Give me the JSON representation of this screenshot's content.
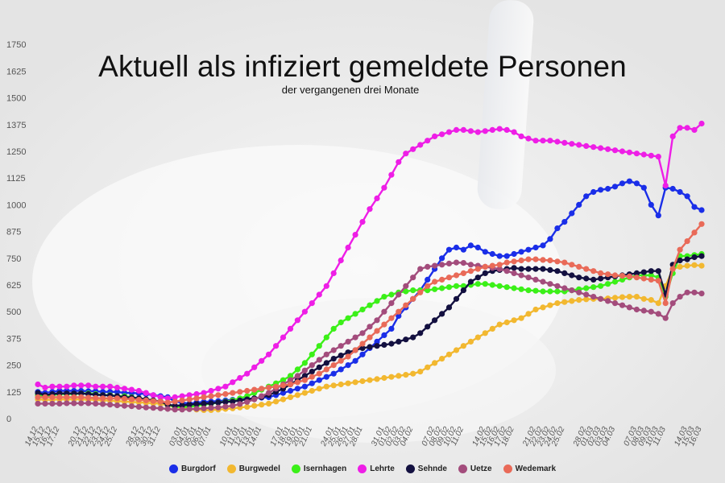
{
  "chart_data": {
    "type": "line",
    "title": "Aktuell als infiziert gemeldete Personen",
    "subtitle": "der vergangenen drei Monate",
    "ylim": [
      0,
      1875
    ],
    "yticks": [
      0,
      125,
      250,
      375,
      500,
      625,
      750,
      875,
      1000,
      1125,
      1250,
      1375,
      1500,
      1625,
      1750
    ],
    "grid": false,
    "legend": "bottom",
    "x": [
      "14.12",
      "15.12",
      "16.12",
      "17.12",
      "18.12",
      "19.12",
      "20.12",
      "21.12",
      "22.12",
      "23.12",
      "24.12",
      "25.12",
      "26.12",
      "27.12",
      "28.12",
      "29.12",
      "30.12",
      "31.12",
      "01.01",
      "02.01",
      "03.01",
      "04.01",
      "05.01",
      "06.01",
      "07.01",
      "08.01",
      "09.01",
      "10.01",
      "11.01",
      "12.01",
      "13.01",
      "14.01",
      "15.01",
      "16.01",
      "17.01",
      "18.01",
      "19.01",
      "20.01",
      "21.01",
      "22.01",
      "23.01",
      "24.01",
      "25.01",
      "26.01",
      "27.01",
      "28.01",
      "29.01",
      "30.01",
      "31.01",
      "01.02",
      "02.02",
      "03.02",
      "04.02",
      "05.02",
      "06.02",
      "07.02",
      "08.02",
      "09.02",
      "10.02",
      "11.02",
      "12.02",
      "13.02",
      "14.02",
      "15.02",
      "16.02",
      "17.02",
      "18.02",
      "19.02",
      "20.02",
      "21.02",
      "22.02",
      "23.02",
      "24.02",
      "25.02",
      "26.02",
      "27.02",
      "28.02",
      "01.03",
      "02.03",
      "03.03",
      "04.03",
      "05.03",
      "06.03",
      "07.03",
      "08.03",
      "09.03",
      "10.03",
      "11.03",
      "12.03",
      "13.03",
      "14.03",
      "15.03",
      "16.03"
    ],
    "xtick_labels": [
      "14.12",
      "15.12",
      "16.12",
      "17.12",
      "20.12",
      "21.12",
      "22.12",
      "23.12",
      "24.12",
      "25.12",
      "28.12",
      "29.12",
      "30.12",
      "31.12",
      "03.01",
      "04.01",
      "05.01",
      "06.01",
      "07.01",
      "10.01",
      "11.01",
      "12.01",
      "13.01",
      "14.01",
      "17.01",
      "18.01",
      "19.01",
      "20.01",
      "21.01",
      "24.01",
      "25.01",
      "26.01",
      "27.01",
      "28.01",
      "31.01",
      "01.02",
      "02.02",
      "03.02",
      "04.02",
      "07.02",
      "08.02",
      "09.02",
      "10.02",
      "11.02",
      "14.02",
      "15.02",
      "16.02",
      "17.02",
      "18.02",
      "21.02",
      "22.02",
      "23.02",
      "24.02",
      "25.02",
      "28.02",
      "01.03",
      "02.03",
      "03.03",
      "04.03",
      "07.03",
      "08.03",
      "09.03",
      "10.03",
      "11.03",
      "14.03",
      "15.03",
      "16.03"
    ],
    "series": [
      {
        "name": "Burgdorf",
        "color": "#1a2ee8",
        "values": [
          125,
          120,
          125,
          130,
          130,
          130,
          130,
          128,
          128,
          125,
          125,
          125,
          120,
          120,
          118,
          115,
          110,
          105,
          100,
          80,
          75,
          70,
          75,
          78,
          80,
          82,
          85,
          88,
          90,
          92,
          95,
          98,
          100,
          110,
          120,
          130,
          140,
          150,
          165,
          180,
          195,
          210,
          230,
          250,
          270,
          300,
          330,
          360,
          390,
          420,
          480,
          520,
          560,
          600,
          650,
          700,
          750,
          790,
          800,
          790,
          810,
          800,
          780,
          770,
          760,
          760,
          770,
          780,
          790,
          800,
          810,
          840,
          890,
          920,
          960,
          1000,
          1040,
          1060,
          1070,
          1075,
          1085,
          1100,
          1110,
          1100,
          1080,
          1000,
          950,
          1080,
          1075,
          1060,
          1040,
          990,
          975
        ]
      },
      {
        "name": "Burgwedel",
        "color": "#f2b830",
        "values": [
          90,
          88,
          88,
          90,
          90,
          90,
          90,
          88,
          88,
          85,
          85,
          82,
          80,
          78,
          76,
          74,
          72,
          70,
          62,
          55,
          50,
          45,
          42,
          40,
          40,
          42,
          45,
          48,
          52,
          55,
          60,
          65,
          70,
          80,
          90,
          100,
          110,
          120,
          130,
          140,
          150,
          155,
          160,
          165,
          170,
          175,
          180,
          185,
          190,
          195,
          200,
          205,
          210,
          220,
          240,
          260,
          280,
          300,
          320,
          340,
          360,
          380,
          400,
          420,
          440,
          450,
          460,
          470,
          490,
          510,
          520,
          530,
          540,
          545,
          550,
          555,
          558,
          560,
          560,
          562,
          565,
          568,
          570,
          570,
          560,
          555,
          540,
          620,
          700,
          710,
          715,
          718,
          715
        ]
      },
      {
        "name": "Isernhagen",
        "color": "#3bf018",
        "values": [
          110,
          105,
          110,
          115,
          115,
          115,
          118,
          118,
          115,
          110,
          110,
          105,
          105,
          100,
          95,
          90,
          85,
          80,
          65,
          55,
          55,
          55,
          60,
          65,
          70,
          75,
          80,
          85,
          95,
          105,
          120,
          135,
          150,
          165,
          180,
          200,
          230,
          260,
          300,
          340,
          380,
          420,
          450,
          470,
          490,
          510,
          530,
          550,
          570,
          580,
          590,
          595,
          600,
          600,
          600,
          605,
          610,
          615,
          620,
          620,
          625,
          630,
          630,
          625,
          620,
          615,
          610,
          605,
          600,
          598,
          595,
          595,
          595,
          595,
          600,
          605,
          610,
          615,
          620,
          630,
          640,
          650,
          660,
          670,
          670,
          670,
          660,
          570,
          680,
          760,
          760,
          765,
          770
        ]
      },
      {
        "name": "Lehrte",
        "color": "#ee1ee6",
        "values": [
          160,
          145,
          150,
          150,
          150,
          155,
          155,
          155,
          150,
          150,
          150,
          145,
          140,
          135,
          130,
          120,
          110,
          100,
          95,
          100,
          105,
          110,
          115,
          120,
          130,
          140,
          150,
          170,
          190,
          210,
          240,
          270,
          300,
          340,
          380,
          420,
          460,
          500,
          540,
          580,
          620,
          680,
          740,
          800,
          860,
          920,
          980,
          1030,
          1080,
          1140,
          1200,
          1240,
          1260,
          1280,
          1300,
          1320,
          1330,
          1340,
          1350,
          1350,
          1345,
          1340,
          1345,
          1350,
          1355,
          1350,
          1340,
          1320,
          1310,
          1300,
          1300,
          1300,
          1295,
          1290,
          1285,
          1280,
          1275,
          1270,
          1265,
          1260,
          1255,
          1250,
          1245,
          1240,
          1235,
          1230,
          1225,
          1090,
          1320,
          1360,
          1360,
          1350,
          1380
        ]
      },
      {
        "name": "Sehnde",
        "color": "#131040",
        "values": [
          120,
          110,
          115,
          118,
          118,
          118,
          118,
          115,
          112,
          110,
          108,
          105,
          100,
          98,
          95,
          90,
          85,
          80,
          65,
          60,
          62,
          65,
          68,
          70,
          72,
          75,
          78,
          80,
          85,
          90,
          95,
          100,
          110,
          125,
          140,
          160,
          180,
          200,
          220,
          240,
          260,
          280,
          295,
          310,
          320,
          330,
          335,
          340,
          345,
          350,
          360,
          370,
          380,
          400,
          430,
          460,
          490,
          520,
          560,
          600,
          640,
          660,
          680,
          690,
          695,
          700,
          705,
          700,
          700,
          700,
          700,
          695,
          690,
          680,
          670,
          660,
          655,
          650,
          655,
          660,
          665,
          670,
          675,
          680,
          685,
          690,
          690,
          580,
          720,
          740,
          745,
          755,
          760
        ]
      },
      {
        "name": "Uetze",
        "color": "#a34c7c",
        "values": [
          70,
          70,
          70,
          70,
          72,
          72,
          72,
          72,
          70,
          68,
          65,
          62,
          60,
          58,
          55,
          52,
          50,
          48,
          45,
          42,
          42,
          44,
          46,
          48,
          50,
          52,
          56,
          60,
          68,
          78,
          90,
          105,
          120,
          140,
          160,
          180,
          200,
          225,
          250,
          275,
          300,
          320,
          340,
          360,
          380,
          400,
          430,
          460,
          500,
          540,
          580,
          620,
          660,
          700,
          710,
          715,
          720,
          725,
          730,
          728,
          720,
          715,
          710,
          705,
          700,
          690,
          680,
          670,
          660,
          650,
          640,
          630,
          620,
          610,
          600,
          590,
          580,
          570,
          560,
          550,
          540,
          530,
          520,
          510,
          505,
          500,
          490,
          470,
          540,
          570,
          590,
          590,
          585
        ]
      },
      {
        "name": "Wedemark",
        "color": "#e96a58",
        "values": [
          100,
          100,
          100,
          100,
          100,
          100,
          100,
          98,
          96,
          95,
          95,
          95,
          93,
          90,
          88,
          85,
          82,
          80,
          75,
          80,
          85,
          90,
          95,
          100,
          105,
          110,
          115,
          120,
          125,
          130,
          135,
          140,
          145,
          150,
          155,
          160,
          170,
          180,
          195,
          210,
          230,
          250,
          270,
          290,
          320,
          350,
          380,
          410,
          440,
          470,
          500,
          530,
          560,
          590,
          620,
          640,
          650,
          660,
          670,
          680,
          690,
          700,
          710,
          715,
          720,
          730,
          735,
          740,
          745,
          745,
          742,
          740,
          735,
          730,
          720,
          710,
          700,
          690,
          680,
          675,
          670,
          668,
          665,
          660,
          655,
          650,
          645,
          540,
          700,
          790,
          830,
          870,
          910
        ]
      }
    ]
  }
}
